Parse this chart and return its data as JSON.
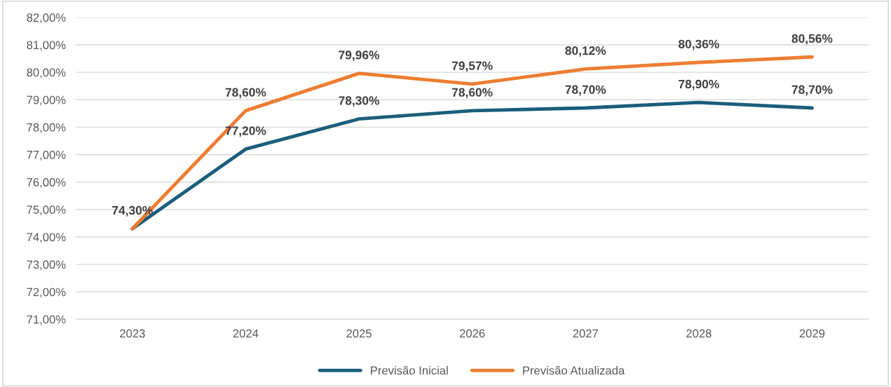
{
  "chart_data": {
    "type": "line",
    "categories": [
      "2023",
      "2024",
      "2025",
      "2026",
      "2027",
      "2028",
      "2029"
    ],
    "series": [
      {
        "name": "Previsão Inicial",
        "color": "#1b5e7b",
        "values": [
          74.3,
          77.2,
          78.3,
          78.6,
          78.7,
          78.9,
          78.7
        ],
        "value_labels": [
          "74,30%",
          "77,20%",
          "78,30%",
          "78,60%",
          "78,70%",
          "78,90%",
          "78,70%"
        ]
      },
      {
        "name": "Previsão Atualizada",
        "color": "#ed7d31",
        "values": [
          74.3,
          78.6,
          79.96,
          79.57,
          80.12,
          80.36,
          80.56
        ],
        "value_labels": [
          null,
          "78,60%",
          "79,96%",
          "79,57%",
          "80,12%",
          "80,36%",
          "80,56%"
        ]
      }
    ],
    "ylim": [
      71,
      82
    ],
    "yticks": [
      {
        "value": 71,
        "label": "71,00%"
      },
      {
        "value": 72,
        "label": "72,00%"
      },
      {
        "value": 73,
        "label": "73,00%"
      },
      {
        "value": 74,
        "label": "74,00%"
      },
      {
        "value": 75,
        "label": "75,00%"
      },
      {
        "value": 76,
        "label": "76,00%"
      },
      {
        "value": 77,
        "label": "77,00%"
      },
      {
        "value": 78,
        "label": "78,00%"
      },
      {
        "value": 79,
        "label": "79,00%"
      },
      {
        "value": 80,
        "label": "80,00%"
      },
      {
        "value": 81,
        "label": "81,00%"
      },
      {
        "value": 82,
        "label": "82,00%"
      }
    ],
    "grid": "y",
    "legend": "bottom",
    "marker": "none",
    "line_style": "solid"
  }
}
